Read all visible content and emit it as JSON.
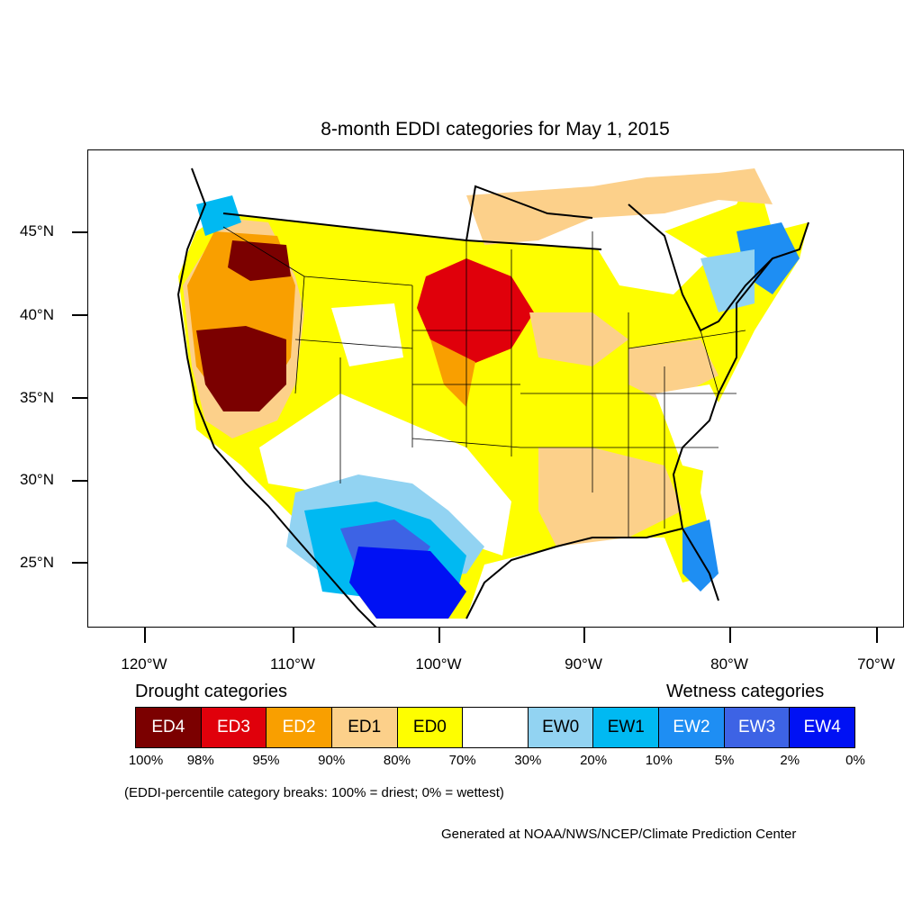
{
  "title": "8-month EDDI categories for May 1, 2015",
  "lat_labels": [
    "45°N",
    "40°N",
    "35°N",
    "30°N",
    "25°N"
  ],
  "lon_labels": [
    "120°W",
    "110°W",
    "100°W",
    "90°W",
    "80°W",
    "70°W"
  ],
  "legend": {
    "drought_heading": "Drought categories",
    "wetness_heading": "Wetness categories",
    "categories": [
      {
        "label": "ED4",
        "color": "#7b0000",
        "text_color": "#ffffff"
      },
      {
        "label": "ED3",
        "color": "#e0000b",
        "text_color": "#ffffff"
      },
      {
        "label": "ED2",
        "color": "#f99f00",
        "text_color": "#ffffff"
      },
      {
        "label": "ED1",
        "color": "#fcd08a",
        "text_color": "#000000"
      },
      {
        "label": "ED0",
        "color": "#fefe00",
        "text_color": "#000000"
      },
      {
        "label": "",
        "color": "#ffffff",
        "text_color": "#000000"
      },
      {
        "label": "EW0",
        "color": "#92d3f2",
        "text_color": "#000000"
      },
      {
        "label": "EW1",
        "color": "#00b9f2",
        "text_color": "#000000"
      },
      {
        "label": "EW2",
        "color": "#1e8ef3",
        "text_color": "#ffffff"
      },
      {
        "label": "EW3",
        "color": "#3d63e5",
        "text_color": "#ffffff"
      },
      {
        "label": "EW4",
        "color": "#0011f4",
        "text_color": "#ffffff"
      }
    ],
    "percent_breaks": [
      "100%",
      "98%",
      "95%",
      "90%",
      "80%",
      "70%",
      "30%",
      "20%",
      "10%",
      "5%",
      "2%",
      "0%"
    ]
  },
  "note": "(EDDI-percentile category breaks: 100% = driest; 0% = wettest)",
  "credit": "Generated at NOAA/NWS/NCEP/Climate Prediction Center"
}
